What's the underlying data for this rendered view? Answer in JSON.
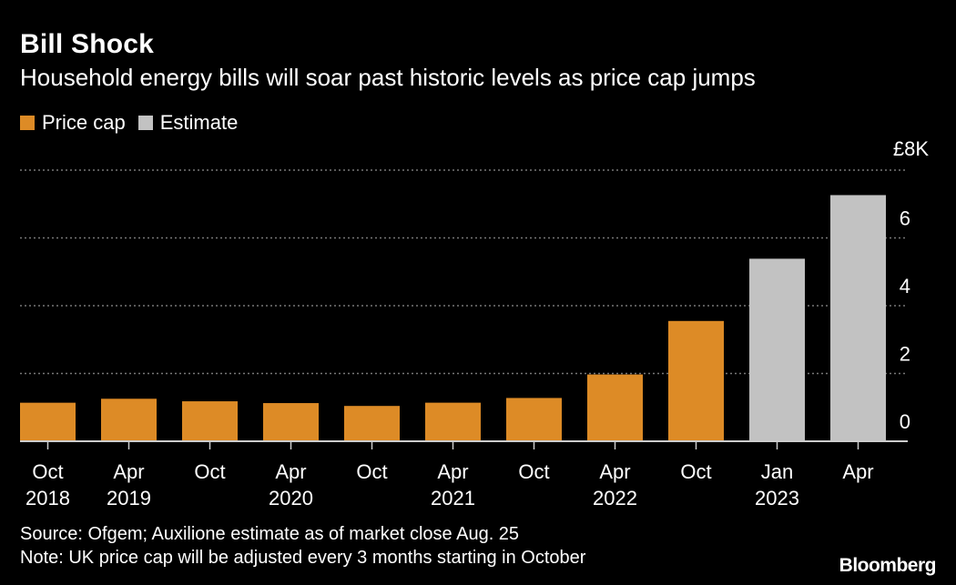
{
  "chart_data": {
    "type": "bar",
    "title": "Bill Shock",
    "subtitle": "Household energy bills will soar past historic levels as price cap jumps",
    "categories": [
      [
        "Oct",
        "2018"
      ],
      [
        "Apr",
        "2019"
      ],
      [
        "Oct",
        ""
      ],
      [
        "Apr",
        "2020"
      ],
      [
        "Oct",
        ""
      ],
      [
        "Apr",
        "2021"
      ],
      [
        "Oct",
        ""
      ],
      [
        "Apr",
        "2022"
      ],
      [
        "Oct",
        ""
      ],
      [
        "Jan",
        "2023"
      ],
      [
        "Apr",
        ""
      ]
    ],
    "series": [
      {
        "name": "Price cap",
        "color": "#dd8b26",
        "values": [
          1.137,
          1.254,
          1.179,
          1.126,
          1.042,
          1.138,
          1.277,
          1.971,
          3.549,
          null,
          null
        ]
      },
      {
        "name": "Estimate",
        "color": "#c2c2c2",
        "values": [
          null,
          null,
          null,
          null,
          null,
          null,
          null,
          null,
          null,
          5.386,
          7.263
        ]
      }
    ],
    "ylabel": "£ thousands",
    "ylim": [
      0,
      8
    ],
    "yticks": [
      0,
      2,
      4,
      6,
      8
    ],
    "ytick_labels": [
      "0",
      "2",
      "4",
      "6",
      "£8K"
    ],
    "grid": true,
    "legend": "top-left"
  },
  "footer": {
    "source": "Source: Ofgem; Auxilione estimate as of market close Aug. 25",
    "note": "Note: UK price cap will be adjusted every 3 months starting in October",
    "brand": "Bloomberg"
  }
}
